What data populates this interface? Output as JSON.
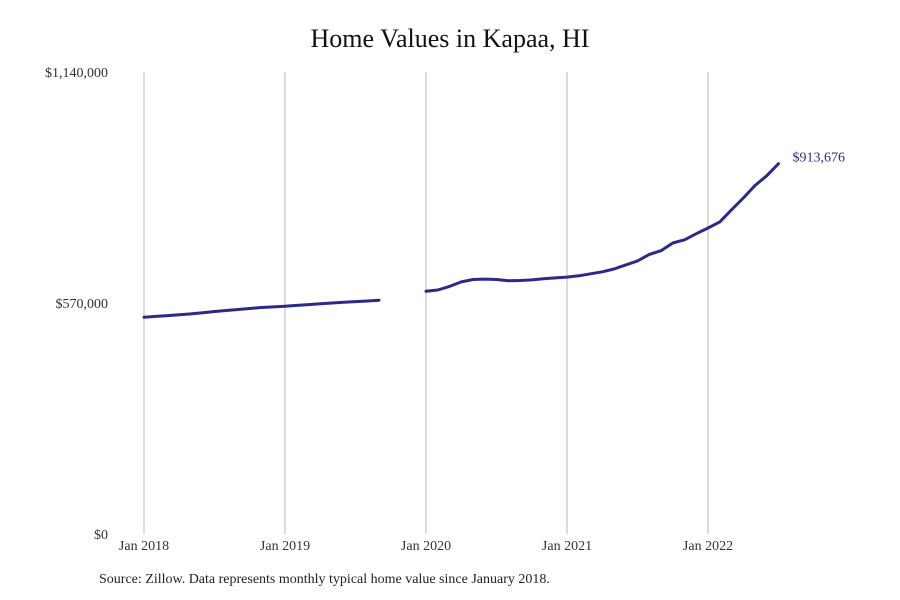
{
  "chart_data": {
    "type": "line",
    "title": "Home Values in Kapaa, HI",
    "source": "Source: Zillow. Data represents monthly typical home value since January 2018.",
    "xlabel": "",
    "ylabel": "",
    "x_ticks": [
      "Jan 2018",
      "Jan 2019",
      "Jan 2020",
      "Jan 2021",
      "Jan 2022"
    ],
    "y_ticks": [
      "$1,140,000",
      "$570,000",
      "$0"
    ],
    "ylim": [
      0,
      1140000
    ],
    "xlim": [
      "2018-01",
      "2022-12"
    ],
    "grid": "vertical",
    "line_color": "#2b2a8a",
    "end_label": "$913,676",
    "series": [
      {
        "segments": [
          [
            [
              "2018-01",
              535000
            ],
            [
              "2018-02",
              537000
            ],
            [
              "2018-03",
              539000
            ],
            [
              "2018-04",
              541000
            ],
            [
              "2018-05",
              543000
            ],
            [
              "2018-06",
              546000
            ],
            [
              "2018-07",
              549000
            ],
            [
              "2018-08",
              551500
            ],
            [
              "2018-09",
              554000
            ],
            [
              "2018-10",
              556500
            ],
            [
              "2018-11",
              559000
            ],
            [
              "2018-12",
              560500
            ],
            [
              "2019-01",
              562000
            ],
            [
              "2019-02",
              564000
            ],
            [
              "2019-03",
              566000
            ],
            [
              "2019-04",
              568000
            ],
            [
              "2019-05",
              570000
            ],
            [
              "2019-06",
              572000
            ],
            [
              "2019-07",
              573500
            ],
            [
              "2019-08",
              575000
            ],
            [
              "2019-09",
              577000
            ]
          ],
          [
            [
              "2020-01",
              599000
            ],
            [
              "2020-02",
              602000
            ],
            [
              "2020-03",
              611000
            ],
            [
              "2020-04",
              622000
            ],
            [
              "2020-05",
              628000
            ],
            [
              "2020-06",
              629000
            ],
            [
              "2020-07",
              628000
            ],
            [
              "2020-08",
              625000
            ],
            [
              "2020-09",
              625500
            ],
            [
              "2020-10",
              627000
            ],
            [
              "2020-11",
              630000
            ],
            [
              "2020-12",
              632000
            ],
            [
              "2021-01",
              634000
            ],
            [
              "2021-02",
              637000
            ],
            [
              "2021-03",
              642000
            ],
            [
              "2021-04",
              647000
            ],
            [
              "2021-05",
              654000
            ],
            [
              "2021-06",
              664000
            ],
            [
              "2021-07",
              674000
            ],
            [
              "2021-08",
              690000
            ],
            [
              "2021-09",
              699000
            ],
            [
              "2021-10",
              718000
            ],
            [
              "2021-11",
              726000
            ],
            [
              "2021-12",
              741000
            ],
            [
              "2022-01",
              755000
            ],
            [
              "2022-02",
              770000
            ],
            [
              "2022-03",
              800000
            ],
            [
              "2022-04",
              829000
            ],
            [
              "2022-05",
              860000
            ],
            [
              "2022-06",
              884000
            ],
            [
              "2022-07",
              913676
            ]
          ]
        ]
      }
    ]
  }
}
